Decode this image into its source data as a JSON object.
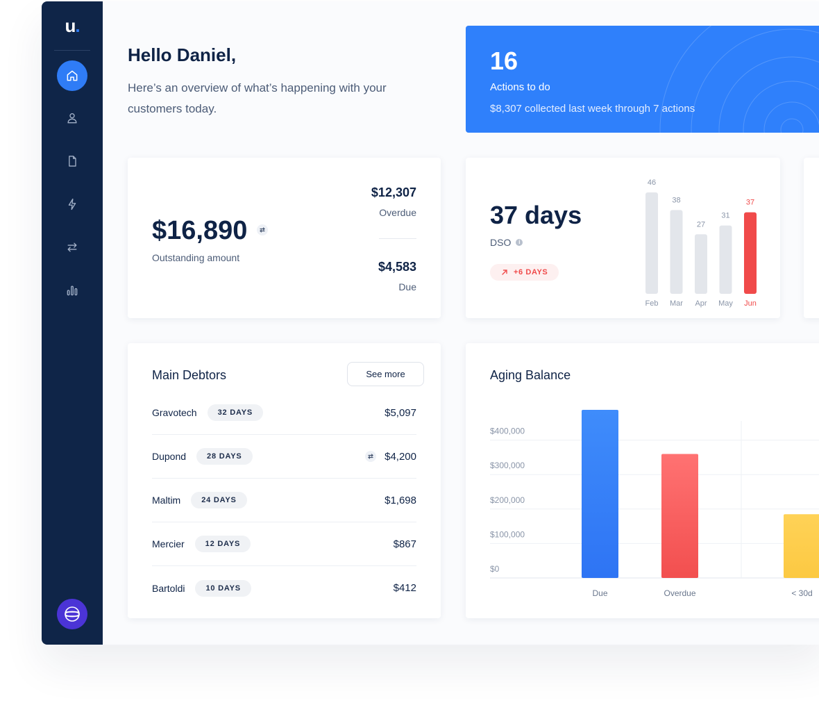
{
  "sidebar": {
    "logo_letter": "u",
    "logo_dot": ".",
    "nav": [
      {
        "icon": "home-icon",
        "active": true
      },
      {
        "icon": "user-icon",
        "active": false
      },
      {
        "icon": "document-icon",
        "active": false
      },
      {
        "icon": "lightning-icon",
        "active": false
      },
      {
        "icon": "transfer-icon",
        "active": false
      },
      {
        "icon": "analytics-icon",
        "active": false
      }
    ],
    "footer_icon": "globe-icon"
  },
  "greeting": {
    "title": "Hello Daniel,",
    "subtitle": "Here’s an overview of what’s happening with your customers today."
  },
  "actions": {
    "count": "16",
    "label": "Actions to do",
    "note": "$8,307 collected last week through 7 actions"
  },
  "outstanding": {
    "amount": "$16,890",
    "label": "Outstanding amount",
    "overdue_value": "$12,307",
    "overdue_label": "Overdue",
    "due_value": "$4,583",
    "due_label": "Due"
  },
  "dso": {
    "value": "37 days",
    "label": "DSO",
    "info_icon": "i",
    "trend": "+6 DAYS"
  },
  "debtors": {
    "title": "Main Debtors",
    "see_more": "See more",
    "rows": [
      {
        "name": "Gravotech",
        "days": "32 DAYS",
        "amount": "$5,097"
      },
      {
        "name": "Dupond",
        "days": "28 DAYS",
        "amount": "$4,200"
      },
      {
        "name": "Maltim",
        "days": "24 DAYS",
        "amount": "$1,698"
      },
      {
        "name": "Mercier",
        "days": "12 DAYS",
        "amount": "$867"
      },
      {
        "name": "Bartoldi",
        "days": "10 DAYS",
        "amount": "$412"
      }
    ]
  },
  "aging": {
    "title": "Aging Balance"
  },
  "colors": {
    "sidebar": "#0f2548",
    "accent": "#2f7cf6",
    "danger": "#f04a4a",
    "bar_neutral": "#e3e6eb",
    "yellow": "#fdcd4a"
  },
  "chart_data": [
    {
      "type": "bar",
      "categories": [
        "Feb",
        "Mar",
        "Apr",
        "May",
        "Jun"
      ],
      "values": [
        46,
        38,
        27,
        31,
        37
      ],
      "highlight": "Jun",
      "ylim": [
        0,
        46
      ]
    },
    {
      "type": "bar",
      "categories": [
        "Due",
        "Overdue",
        "< 30d"
      ],
      "values": [
        488000,
        360000,
        185000
      ],
      "colors": [
        "#2f7cf6",
        "#f45a5a",
        "#fdcd4a"
      ],
      "yticks": [
        "$0",
        "$100,000",
        "$200,000",
        "$300,000",
        "$400,000"
      ],
      "ylim": [
        0,
        480000
      ],
      "grid": true
    }
  ]
}
